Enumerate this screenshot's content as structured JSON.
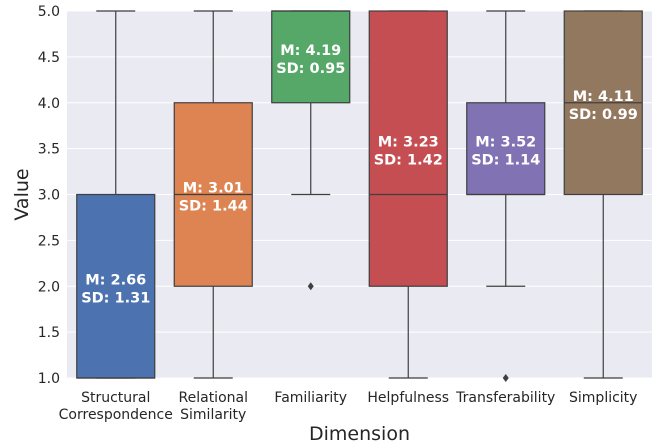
{
  "chart_data": {
    "type": "box",
    "title": "",
    "xlabel": "Dimension",
    "ylabel": "Value",
    "ylim": [
      1.0,
      5.0
    ],
    "yticks": [
      "1.0",
      "1.5",
      "2.0",
      "2.5",
      "3.0",
      "3.5",
      "4.0",
      "4.5",
      "5.0"
    ],
    "grid": true,
    "categories": [
      "Structural\nCorrespondence",
      "Relational\nSimilarity",
      "Familiarity",
      "Helpfulness",
      "Transferability",
      "Simplicity"
    ],
    "boxes": [
      {
        "whislo": 1,
        "q1": 1,
        "med": 1,
        "q3": 3,
        "whishi": 5,
        "fliers": [],
        "color": "#4C72B0",
        "mean_label": "M: 2.66",
        "sd_label": "SD: 1.31"
      },
      {
        "whislo": 1,
        "q1": 2,
        "med": 3,
        "q3": 4,
        "whishi": 5,
        "fliers": [],
        "color": "#DD8452",
        "mean_label": "M: 3.01",
        "sd_label": "SD: 1.44"
      },
      {
        "whislo": 3,
        "q1": 4,
        "med": 5,
        "q3": 5,
        "whishi": 5,
        "fliers": [
          2
        ],
        "color": "#55A868",
        "mean_label": "M: 4.19",
        "sd_label": "SD: 0.95"
      },
      {
        "whislo": 1,
        "q1": 2,
        "med": 3,
        "q3": 5,
        "whishi": 5,
        "fliers": [],
        "color": "#C44E52",
        "mean_label": "M: 3.23",
        "sd_label": "SD: 1.42"
      },
      {
        "whislo": 2,
        "q1": 3,
        "med": 3,
        "q3": 4,
        "whishi": 5,
        "fliers": [
          1
        ],
        "color": "#8172B3",
        "mean_label": "M: 3.52",
        "sd_label": "SD: 1.14"
      },
      {
        "whislo": 1,
        "q1": 3,
        "med": 4,
        "q3": 5,
        "whishi": 5,
        "fliers": [],
        "color": "#937860",
        "mean_label": "M: 4.11",
        "sd_label": "SD: 0.99"
      }
    ],
    "colors": {
      "plot_background": "#EAEAF2",
      "grid": "#FFFFFF",
      "edge": "#3F3F3F"
    }
  }
}
